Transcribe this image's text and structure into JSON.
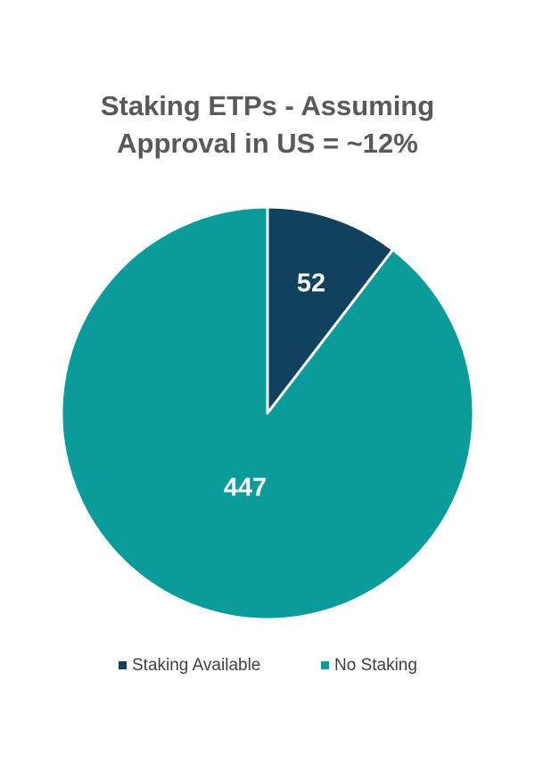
{
  "chart_data": {
    "type": "pie",
    "title": "Staking ETPs - Assuming Approval in US = ~12%",
    "categories": [
      "Staking Available",
      "No Staking"
    ],
    "values": [
      52,
      447
    ],
    "colors": [
      "#12415e",
      "#0a9b9b"
    ],
    "legend": "bottom"
  }
}
